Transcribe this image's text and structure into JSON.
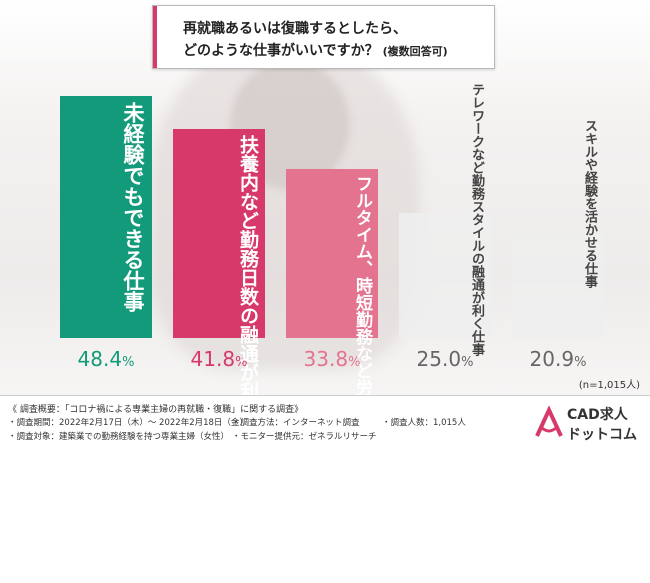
{
  "title": {
    "line1": "再就職あるいは復職するとしたら、",
    "line2": "どのような仕事がいいですか？",
    "note": "(複数回答可)"
  },
  "chart_data": {
    "type": "bar",
    "categories": [
      "未経験でもできる仕事",
      "扶養内など勤務日数の融通が利く仕事",
      "フルタイム、時短勤務など労働時間の融通が利く仕事",
      "テレワークなど勤務スタイルの融通が利く仕事",
      "スキルや経験を活かせる仕事"
    ],
    "values": [
      48.4,
      41.8,
      33.8,
      25.0,
      20.9
    ],
    "value_labels": [
      "48.4",
      "41.8",
      "33.8",
      "25.0",
      "20.9"
    ],
    "unit": "%",
    "ylim": [
      0,
      55
    ],
    "colors": [
      "#139a7a",
      "#d6396a",
      "#e3738f",
      "#eeeeee",
      "#eeeeee"
    ],
    "value_colors": [
      "#139a7a",
      "#d6396a",
      "#e3738f",
      "#666666",
      "#666666"
    ],
    "grid": false
  },
  "sample_size": "(n=1,015人)",
  "footer": {
    "title": "《 調査概要：「コロナ禍による専業主婦の再就職・復職」に関する調査》",
    "period": "・調査期間：2022年2月17日（木）～ 2022年2月18日（金）",
    "method": "・調査方法：インターネット調査",
    "count": "・調査人数：1,015人",
    "target": "・調査対象：建築業での勤務経験を持つ専業主婦（女性）",
    "monitor": "・モニター提供元：ゼネラルリサーチ"
  },
  "logo": {
    "line1": "CAD求人",
    "line2": "ドットコム",
    "accent": "#d6396a"
  }
}
